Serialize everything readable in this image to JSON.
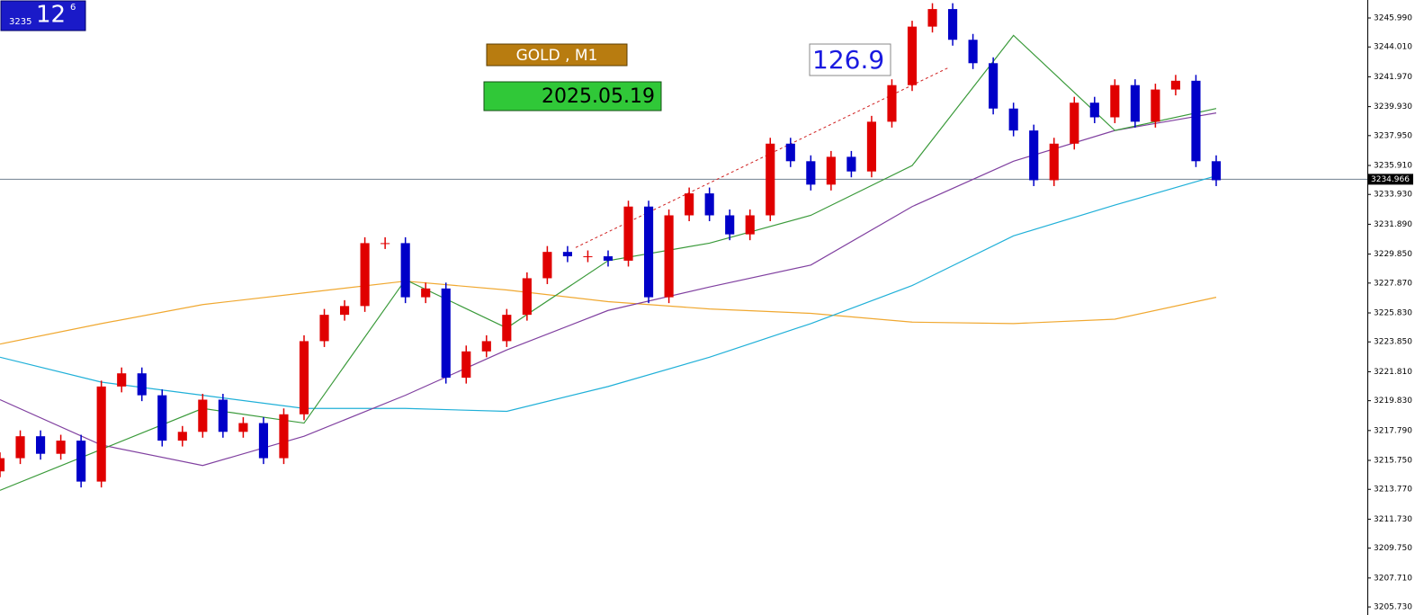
{
  "chart_data": {
    "type": "candlestick",
    "title": "GOLD , M1",
    "date_label": "2025.05.19",
    "annotation": "126.9",
    "info_box": {
      "price": "3235",
      "minutes": "12",
      "seconds": "6"
    },
    "up_color": "#e00000",
    "down_color": "#0000c8",
    "ylim": [
      3205.18,
      3247.22
    ],
    "yticks": [
      {
        "value": 3245.99,
        "label": "3245.990"
      },
      {
        "value": 3244.01,
        "label": "3244.010"
      },
      {
        "value": 3241.97,
        "label": "3241.970"
      },
      {
        "value": 3239.93,
        "label": "3239.930"
      },
      {
        "value": 3237.95,
        "label": "3237.950"
      },
      {
        "value": 3235.91,
        "label": "3235.910"
      },
      {
        "value": 3233.93,
        "label": "3233.930"
      },
      {
        "value": 3231.89,
        "label": "3231.890"
      },
      {
        "value": 3229.85,
        "label": "3229.850"
      },
      {
        "value": 3227.87,
        "label": "3227.870"
      },
      {
        "value": 3225.83,
        "label": "3225.830"
      },
      {
        "value": 3223.85,
        "label": "3223.850"
      },
      {
        "value": 3221.81,
        "label": "3221.810"
      },
      {
        "value": 3219.83,
        "label": "3219.830"
      },
      {
        "value": 3217.79,
        "label": "3217.790"
      },
      {
        "value": 3215.75,
        "label": "3215.750"
      },
      {
        "value": 3213.77,
        "label": "3213.770"
      },
      {
        "value": 3211.73,
        "label": "3211.730"
      },
      {
        "value": 3209.75,
        "label": "3209.750"
      },
      {
        "value": 3207.71,
        "label": "3207.710"
      },
      {
        "value": 3205.73,
        "label": "3205.730"
      }
    ],
    "current_price": 3234.966,
    "open": [
      3215.0,
      3215.9,
      3217.4,
      3216.2,
      3217.1,
      3214.3,
      3220.8,
      3221.7,
      3220.2,
      3217.1,
      3217.7,
      3219.9,
      3217.7,
      3218.3,
      3215.9,
      3218.9,
      3223.9,
      3225.7,
      3226.3,
      3230.6,
      3230.6,
      3226.9,
      3227.5,
      3221.4,
      3223.2,
      3223.9,
      3225.7,
      3228.2,
      3230.0,
      3229.7,
      3229.7,
      3229.4,
      3233.1,
      3226.9,
      3232.5,
      3234.0,
      3232.5,
      3231.2,
      3232.5,
      3237.4,
      3236.2,
      3234.6,
      3236.5,
      3235.5,
      3238.9,
      3241.4,
      3245.4,
      3246.6,
      3244.5,
      3242.9,
      3239.8,
      3238.3,
      3234.9,
      3237.4,
      3240.2,
      3239.2,
      3241.4,
      3238.9,
      3241.1,
      3241.7,
      3236.2
    ],
    "high": [
      3216.3,
      3217.8,
      3217.8,
      3217.5,
      3217.5,
      3221.2,
      3222.1,
      3222.1,
      3220.6,
      3218.1,
      3220.3,
      3220.3,
      3218.7,
      3218.7,
      3219.3,
      3224.3,
      3226.1,
      3226.7,
      3231.0,
      3231.0,
      3231.0,
      3227.9,
      3227.9,
      3223.6,
      3224.3,
      3226.1,
      3228.6,
      3230.4,
      3230.4,
      3230.1,
      3230.1,
      3233.5,
      3233.5,
      3232.9,
      3234.4,
      3234.4,
      3232.9,
      3232.9,
      3237.8,
      3237.8,
      3236.6,
      3236.9,
      3236.9,
      3239.3,
      3241.8,
      3245.8,
      3247.0,
      3247.0,
      3244.9,
      3243.3,
      3240.2,
      3238.7,
      3237.8,
      3240.6,
      3240.6,
      3241.8,
      3241.8,
      3241.5,
      3242.1,
      3242.1,
      3236.6
    ],
    "low": [
      3214.6,
      3215.5,
      3215.8,
      3215.8,
      3213.9,
      3213.9,
      3220.4,
      3219.8,
      3216.7,
      3216.7,
      3217.3,
      3217.3,
      3217.3,
      3215.5,
      3215.5,
      3218.5,
      3223.5,
      3225.3,
      3225.9,
      3230.2,
      3226.5,
      3226.5,
      3221.0,
      3221.0,
      3222.8,
      3223.5,
      3225.3,
      3227.8,
      3229.3,
      3229.3,
      3229.0,
      3229.0,
      3226.5,
      3226.5,
      3232.1,
      3232.1,
      3230.8,
      3230.8,
      3232.1,
      3235.8,
      3234.2,
      3234.2,
      3235.1,
      3235.1,
      3238.5,
      3241.0,
      3245.0,
      3244.1,
      3242.5,
      3239.4,
      3237.9,
      3234.5,
      3234.5,
      3237.0,
      3238.8,
      3238.8,
      3238.5,
      3238.5,
      3240.7,
      3235.8,
      3234.5
    ],
    "close": [
      3215.9,
      3217.4,
      3216.2,
      3217.1,
      3214.3,
      3220.8,
      3221.7,
      3220.2,
      3217.1,
      3217.7,
      3219.9,
      3217.7,
      3218.3,
      3215.9,
      3218.9,
      3223.9,
      3225.7,
      3226.3,
      3230.6,
      3230.6,
      3226.9,
      3227.5,
      3221.4,
      3223.2,
      3223.9,
      3225.7,
      3228.2,
      3230.0,
      3229.7,
      3229.7,
      3229.4,
      3233.1,
      3226.9,
      3232.5,
      3234.0,
      3232.5,
      3231.2,
      3232.5,
      3237.4,
      3236.2,
      3234.6,
      3236.5,
      3235.5,
      3238.9,
      3241.4,
      3245.4,
      3246.6,
      3244.5,
      3242.9,
      3239.8,
      3238.3,
      3234.9,
      3237.4,
      3240.2,
      3239.2,
      3241.4,
      3238.9,
      3241.1,
      3241.7,
      3236.2,
      3234.9
    ],
    "lines": [
      {
        "color": "#f0a830",
        "x": [
          0,
          5,
          10,
          15,
          20,
          25,
          30,
          35,
          40,
          45,
          50,
          55,
          60
        ],
        "values": [
          3223.7,
          3225.1,
          3226.4,
          3227.2,
          3228.0,
          3227.4,
          3226.6,
          3226.1,
          3225.8,
          3225.2,
          3225.1,
          3225.4,
          3226.9
        ]
      },
      {
        "color": "#20b0d8",
        "x": [
          0,
          5,
          10,
          15,
          20,
          25,
          30,
          35,
          40,
          45,
          50,
          55,
          60
        ],
        "values": [
          3222.8,
          3221.1,
          3220.2,
          3219.3,
          3219.3,
          3219.1,
          3220.8,
          3222.8,
          3225.1,
          3227.7,
          3231.1,
          3233.2,
          3235.2
        ]
      },
      {
        "color": "#8040a0",
        "x": [
          0,
          5,
          10,
          15,
          20,
          25,
          30,
          35,
          40,
          45,
          50,
          55,
          60
        ],
        "values": [
          3219.9,
          3216.8,
          3215.4,
          3217.4,
          3220.2,
          3223.3,
          3226.0,
          3227.6,
          3229.1,
          3233.1,
          3236.2,
          3238.3,
          3239.5
        ]
      },
      {
        "color": "#3a9a3a",
        "x": [
          0,
          5,
          10,
          15,
          20,
          25,
          30,
          35,
          40,
          45,
          50,
          55,
          60
        ],
        "values": [
          3213.7,
          3216.5,
          3219.3,
          3218.3,
          3228.1,
          3224.8,
          3229.4,
          3230.6,
          3232.5,
          3235.9,
          3244.8,
          3238.3,
          3239.8
        ]
      }
    ],
    "trendline": {
      "color": "#d02020",
      "x": [
        28.4,
        46.8
      ],
      "values": [
        3230.3,
        3242.6
      ]
    }
  }
}
